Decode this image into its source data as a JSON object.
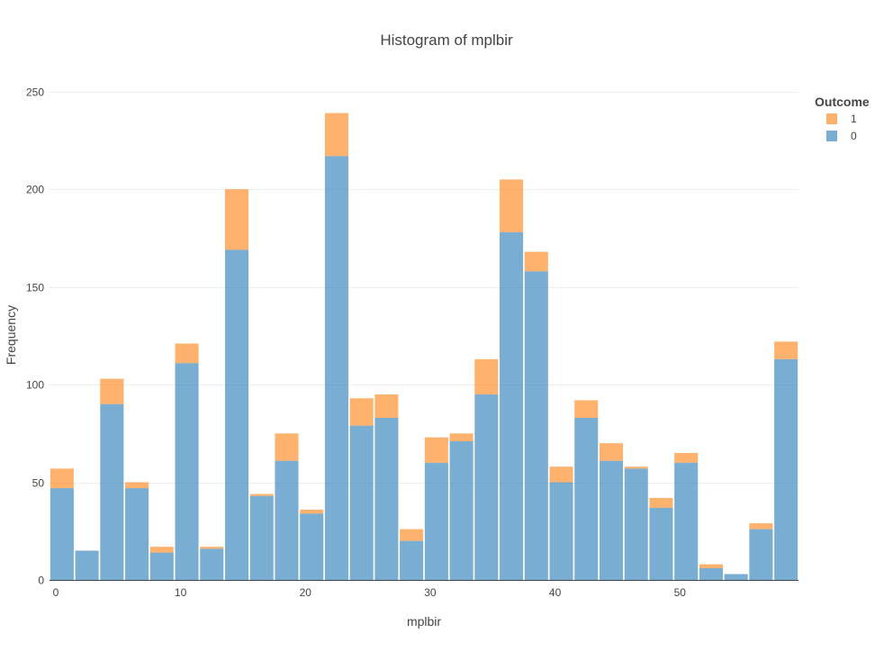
{
  "chart_data": {
    "type": "bar",
    "barmode": "stack",
    "title": "Histogram of mplbir",
    "xlabel": "mplbir",
    "ylabel": "Frequency",
    "xlim": [
      -0.5,
      59.5
    ],
    "ylim": [
      0,
      260
    ],
    "bin_width": 2,
    "x_ticks": [
      0,
      10,
      20,
      30,
      40,
      50
    ],
    "y_ticks": [
      0,
      50,
      100,
      150,
      200,
      250
    ],
    "grid": true,
    "legend_title": "Outcome",
    "legend_position": "top-right",
    "x": [
      0.5,
      2.5,
      4.5,
      6.5,
      8.5,
      10.5,
      12.5,
      14.5,
      16.5,
      18.5,
      20.5,
      22.5,
      24.5,
      26.5,
      28.5,
      30.5,
      32.5,
      34.5,
      36.5,
      38.5,
      40.5,
      42.5,
      44.5,
      46.5,
      48.5,
      50.5,
      52.5,
      54.5,
      56.5,
      58.5
    ],
    "series": [
      {
        "name": "0",
        "color": "#1f77b4",
        "values": [
          47,
          15,
          90,
          47,
          14,
          111,
          16,
          169,
          43,
          61,
          34,
          217,
          79,
          83,
          20,
          60,
          71,
          95,
          178,
          158,
          50,
          83,
          61,
          57,
          37,
          60,
          6,
          3,
          26,
          113
        ]
      },
      {
        "name": "1",
        "color": "#ff7f0e",
        "values": [
          10,
          0,
          13,
          3,
          3,
          10,
          1,
          31,
          1,
          14,
          2,
          22,
          14,
          12,
          6,
          13,
          4,
          18,
          27,
          10,
          8,
          9,
          9,
          1,
          5,
          5,
          2,
          0,
          3,
          9
        ]
      }
    ],
    "legend_order": [
      "1",
      "0"
    ]
  }
}
